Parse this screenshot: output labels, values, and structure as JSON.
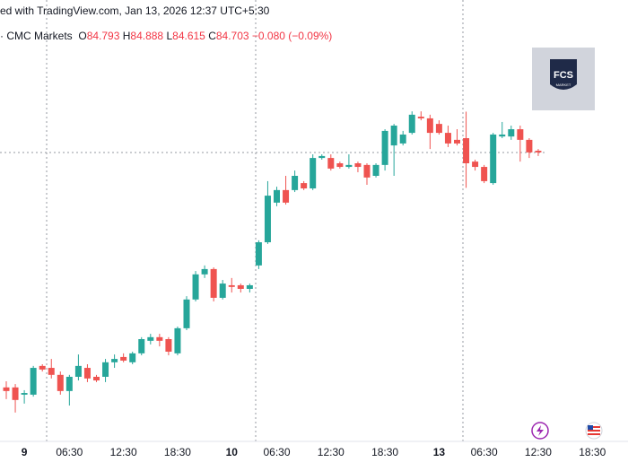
{
  "header": {
    "source": "ed with TradingView.com, Jan 13, 2026 12:37 UTC+5:30",
    "symbol": "· CMC Markets",
    "ohlc_labels": [
      "O",
      "H",
      "L",
      "C"
    ],
    "change": "−0.080 (−0.09%)"
  },
  "logo": {
    "title": "FCS",
    "subtitle": "MARKET"
  },
  "chart_data": {
    "type": "candlestick",
    "categories": [
      null,
      null,
      "9",
      null,
      null,
      null,
      null,
      "06:30",
      null,
      null,
      null,
      null,
      null,
      "12:30",
      null,
      null,
      null,
      null,
      null,
      "18:30",
      null,
      null,
      null,
      null,
      null,
      "10",
      null,
      null,
      null,
      null,
      "06:30",
      null,
      null,
      null,
      null,
      null,
      "12:30",
      null,
      null,
      null,
      null,
      null,
      "18:30",
      null,
      null,
      null,
      null,
      null,
      "13",
      null,
      null,
      null,
      null,
      "06:30",
      null,
      null,
      null,
      null,
      null,
      "12:30",
      null,
      null,
      null,
      null,
      null,
      "18:30"
    ],
    "open": [
      83.9,
      83.9,
      83.874,
      83.874,
      83.977,
      83.97,
      83.945,
      83.887,
      83.938,
      83.97,
      83.938,
      83.938,
      83.99,
      84.009,
      83.99,
      84.022,
      84.067,
      84.08,
      84.073,
      84.022,
      84.112,
      84.215,
      84.305,
      84.324,
      84.221,
      84.266,
      84.266,
      84.253,
      84.337,
      84.42,
      84.562,
      84.607,
      84.607,
      84.632,
      84.613,
      84.722,
      84.722,
      84.703,
      84.69,
      84.703,
      84.697,
      84.658,
      84.697,
      84.767,
      84.774,
      84.812,
      84.87,
      84.864,
      84.844,
      84.812,
      84.787,
      84.793,
      84.709,
      84.69,
      84.632,
      84.799,
      84.799,
      84.825,
      84.787,
      84.748,
      null,
      null,
      null,
      null,
      null,
      null
    ],
    "high": [
      83.922,
      83.912,
      83.89,
      83.977,
      83.983,
      84.002,
      83.957,
      83.945,
      84.018,
      83.983,
      83.945,
      84.002,
      84.018,
      84.022,
      84.028,
      84.08,
      84.092,
      84.092,
      84.08,
      84.118,
      84.227,
      84.317,
      84.337,
      84.33,
      84.285,
      84.292,
      84.272,
      84.272,
      84.427,
      84.639,
      84.619,
      84.658,
      84.677,
      84.639,
      84.735,
      84.735,
      84.735,
      84.709,
      84.735,
      84.709,
      84.703,
      84.703,
      84.825,
      84.844,
      84.819,
      84.889,
      84.889,
      84.877,
      84.857,
      84.838,
      84.825,
      84.888,
      84.716,
      84.697,
      84.812,
      84.851,
      84.838,
      84.838,
      84.793,
      84.754,
      null,
      null,
      null,
      null,
      null,
      null
    ],
    "low": [
      83.858,
      83.81,
      83.842,
      83.867,
      83.957,
      83.932,
      83.874,
      83.835,
      83.925,
      83.919,
      83.919,
      83.919,
      83.97,
      83.99,
      83.983,
      84.015,
      84.054,
      84.047,
      84.015,
      84.015,
      84.105,
      84.208,
      84.292,
      84.208,
      84.215,
      84.24,
      84.24,
      84.24,
      84.324,
      84.414,
      84.549,
      84.555,
      84.6,
      84.607,
      84.607,
      84.716,
      84.677,
      84.684,
      84.684,
      84.671,
      84.626,
      84.652,
      84.677,
      84.658,
      84.767,
      84.806,
      84.857,
      84.754,
      84.806,
      84.761,
      84.767,
      84.615,
      84.677,
      84.632,
      84.626,
      84.793,
      84.787,
      84.709,
      84.722,
      84.729,
      null,
      null,
      null,
      null,
      null,
      null
    ],
    "close": [
      83.887,
      83.855,
      83.88,
      83.97,
      83.964,
      83.945,
      83.887,
      83.938,
      83.977,
      83.932,
      83.925,
      83.99,
      84.002,
      83.996,
      84.022,
      84.073,
      84.08,
      84.067,
      84.028,
      84.112,
      84.215,
      84.305,
      84.324,
      84.221,
      84.272,
      84.26,
      84.253,
      84.266,
      84.42,
      84.587,
      84.607,
      84.562,
      84.658,
      84.613,
      84.722,
      84.729,
      84.684,
      84.69,
      84.697,
      84.69,
      84.652,
      84.697,
      84.819,
      84.838,
      84.806,
      84.877,
      84.864,
      84.812,
      84.812,
      84.774,
      84.774,
      84.703,
      84.69,
      84.639,
      84.806,
      84.806,
      84.825,
      84.787,
      84.742,
      84.742,
      null,
      null,
      null,
      null,
      null,
      null
    ],
    "ylim": [
      83.713,
      85.288
    ],
    "up_color": "#26a69a",
    "down_color": "#ef5350"
  }
}
